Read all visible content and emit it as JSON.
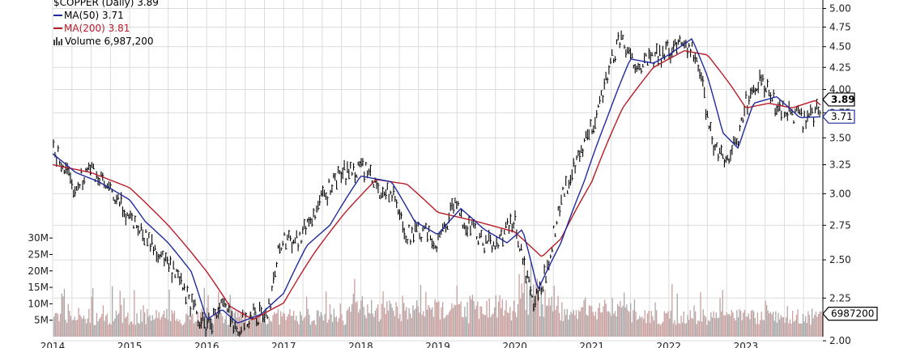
{
  "colors": {
    "price": "#000000",
    "ma50": "#1f2a9e",
    "ma200": "#b81c27",
    "volume_up": "#c9a0a0",
    "volume_down": "#a8a8a8",
    "grid": "#dcdcdc"
  },
  "legend": {
    "title": "$COPPER (Daily) 3.89",
    "ma50": "MA(50) 3.71",
    "ma200": "MA(200) 3.81",
    "volume": "Volume 6,987,200"
  },
  "chart_data": {
    "type": "line",
    "title": "$COPPER (Daily) 3.89",
    "x_tick_labels": [
      "2014",
      "2015",
      "2016",
      "2017",
      "2018",
      "2019",
      "2020",
      "2021",
      "2022",
      "2023"
    ],
    "x_range": [
      2014.0,
      2024.0
    ],
    "price_axis": {
      "scale": "log",
      "ylim": [
        2.05,
        5.05
      ],
      "ticks": [
        "5.00",
        "4.75",
        "4.50",
        "4.25",
        "4.00",
        "3.75",
        "3.50",
        "3.25",
        "3.00",
        "2.75",
        "2.50",
        "2.25",
        "2.00"
      ]
    },
    "volume_axis": {
      "ylim": [
        0,
        32000000
      ],
      "ticks": [
        "30M",
        "25M",
        "20M",
        "15M",
        "10M",
        "5M"
      ]
    },
    "price_labels": {
      "last": "3.89",
      "ma50_last": "3.71",
      "volume_last": "6987200"
    },
    "series": [
      {
        "name": "$COPPER (Daily)",
        "style": "hlc-bars",
        "x": [
          2014.0,
          2014.1,
          2014.25,
          2014.5,
          2014.75,
          2015.0,
          2015.1,
          2015.3,
          2015.5,
          2015.7,
          2015.9,
          2016.0,
          2016.2,
          2016.4,
          2016.6,
          2016.8,
          2016.9,
          2017.0,
          2017.2,
          2017.5,
          2017.7,
          2017.9,
          2018.0,
          2018.2,
          2018.4,
          2018.6,
          2018.8,
          2019.0,
          2019.2,
          2019.4,
          2019.6,
          2019.8,
          2020.0,
          2020.1,
          2020.25,
          2020.4,
          2020.6,
          2020.8,
          2021.0,
          2021.2,
          2021.35,
          2021.5,
          2021.7,
          2021.9,
          2022.0,
          2022.2,
          2022.3,
          2022.4,
          2022.55,
          2022.7,
          2022.9,
          2023.0,
          2023.2,
          2023.4,
          2023.6,
          2023.75,
          2023.9,
          2024.0
        ],
        "y": [
          3.38,
          3.3,
          3.05,
          3.22,
          3.0,
          2.82,
          2.75,
          2.6,
          2.46,
          2.3,
          2.12,
          2.08,
          2.2,
          2.08,
          2.15,
          2.15,
          2.5,
          2.65,
          2.65,
          2.95,
          3.15,
          3.2,
          3.25,
          3.05,
          3.0,
          2.68,
          2.7,
          2.62,
          2.9,
          2.75,
          2.6,
          2.65,
          2.78,
          2.5,
          2.2,
          2.4,
          2.95,
          3.25,
          3.6,
          4.15,
          4.6,
          4.35,
          4.3,
          4.4,
          4.45,
          4.6,
          4.45,
          4.2,
          3.5,
          3.3,
          3.45,
          3.85,
          4.1,
          3.8,
          3.75,
          3.65,
          3.75,
          3.89
        ]
      },
      {
        "name": "MA(50)",
        "value": 3.71,
        "x": [
          2014.0,
          2014.3,
          2014.6,
          2015.0,
          2015.2,
          2015.5,
          2015.8,
          2016.0,
          2016.2,
          2016.4,
          2016.7,
          2017.0,
          2017.3,
          2017.6,
          2018.0,
          2018.4,
          2018.7,
          2019.0,
          2019.3,
          2019.6,
          2019.9,
          2020.1,
          2020.3,
          2020.6,
          2020.9,
          2021.2,
          2021.5,
          2021.8,
          2022.0,
          2022.3,
          2022.5,
          2022.7,
          2022.9,
          2023.1,
          2023.4,
          2023.7,
          2024.0
        ],
        "y": [
          3.35,
          3.18,
          3.1,
          2.95,
          2.78,
          2.62,
          2.42,
          2.12,
          2.18,
          2.1,
          2.15,
          2.28,
          2.6,
          2.75,
          3.15,
          3.1,
          2.78,
          2.68,
          2.88,
          2.72,
          2.62,
          2.72,
          2.3,
          2.62,
          3.1,
          3.7,
          4.35,
          4.3,
          4.4,
          4.6,
          4.15,
          3.55,
          3.4,
          3.85,
          3.92,
          3.7,
          3.71
        ]
      },
      {
        "name": "MA(200)",
        "value": 3.81,
        "x": [
          2014.0,
          2014.5,
          2015.0,
          2015.5,
          2016.0,
          2016.3,
          2016.6,
          2017.0,
          2017.4,
          2017.8,
          2018.2,
          2018.6,
          2019.0,
          2019.5,
          2020.0,
          2020.35,
          2020.6,
          2021.0,
          2021.4,
          2021.8,
          2022.2,
          2022.5,
          2022.8,
          2023.0,
          2023.3,
          2023.6,
          2023.9,
          2024.0
        ],
        "y": [
          3.25,
          3.18,
          3.05,
          2.75,
          2.42,
          2.2,
          2.12,
          2.22,
          2.55,
          2.85,
          3.12,
          3.08,
          2.85,
          2.78,
          2.7,
          2.52,
          2.65,
          3.1,
          3.8,
          4.25,
          4.45,
          4.4,
          4.05,
          3.8,
          3.85,
          3.8,
          3.88,
          3.81
        ]
      }
    ],
    "volume_seed": 7,
    "grid": true,
    "legend_position": "top-left"
  }
}
